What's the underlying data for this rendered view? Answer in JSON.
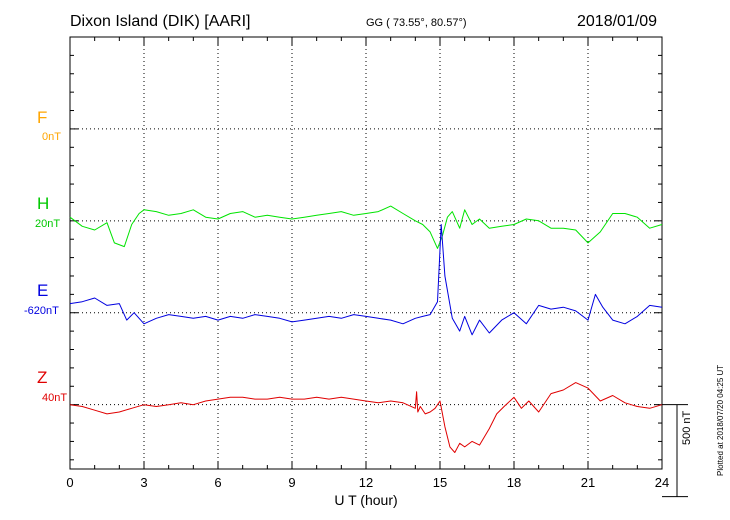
{
  "header": {
    "station": "Dixon Island (DIK)  [AARI]",
    "coords": "GG ( 73.55°,  80.57°)",
    "date": "2018/01/09"
  },
  "footer": {
    "plotted": "Plotted at 2018/07/20 04:25 UT"
  },
  "colors": {
    "F": "#ffa500",
    "H": "#00e400",
    "E": "#0000e0",
    "Z": "#e00000",
    "grid": "#000000"
  },
  "chart_data": {
    "type": "line",
    "title": "",
    "xlabel": "U T (hour)",
    "ylabel": "",
    "xlim": [
      0,
      24
    ],
    "ylim": [
      -1850,
      500
    ],
    "x_ticks": [
      0,
      3,
      6,
      9,
      12,
      15,
      18,
      21,
      24
    ],
    "x_tick_labels": [
      "0",
      "3",
      "6",
      "9",
      "12",
      "15",
      "18",
      "21",
      "24"
    ],
    "grid": true,
    "scale_bar": {
      "label": "500 nT",
      "value": 500
    },
    "series": [
      {
        "name": "F",
        "offset_label": "0nT",
        "baseline": 0,
        "x": [],
        "y": []
      },
      {
        "name": "H",
        "offset_label": "20nT",
        "baseline": -500,
        "x": [
          0,
          0.5,
          1,
          1.5,
          1.8,
          2.2,
          2.5,
          2.8,
          3,
          3.5,
          4,
          4.5,
          5,
          5.5,
          6,
          6.5,
          7,
          7.5,
          8,
          8.5,
          9,
          9.5,
          10,
          10.5,
          11,
          11.5,
          12,
          12.5,
          13,
          13.5,
          14,
          14.3,
          14.6,
          14.9,
          15.1,
          15.3,
          15.5,
          15.8,
          16,
          16.3,
          16.6,
          17,
          17.5,
          18,
          18.5,
          19,
          19.5,
          20,
          20.5,
          21,
          21.5,
          22,
          22.5,
          23,
          23.5,
          24
        ],
        "y": [
          20,
          -30,
          -50,
          -10,
          -120,
          -140,
          -20,
          40,
          60,
          50,
          30,
          40,
          60,
          20,
          10,
          40,
          50,
          20,
          30,
          20,
          10,
          20,
          30,
          40,
          50,
          30,
          40,
          50,
          80,
          40,
          0,
          -20,
          -60,
          -150,
          -80,
          20,
          50,
          -40,
          60,
          -20,
          10,
          -40,
          -30,
          -20,
          10,
          0,
          -40,
          -40,
          -50,
          -120,
          -60,
          40,
          40,
          20,
          -40,
          -20
        ]
      },
      {
        "name": "E",
        "offset_label": "-620nT",
        "baseline": -1000,
        "x": [
          0,
          0.5,
          1,
          1.5,
          2,
          2.3,
          2.6,
          3,
          3.5,
          4,
          4.5,
          5,
          5.5,
          6,
          6.5,
          7,
          7.5,
          8,
          8.5,
          9,
          9.5,
          10,
          10.5,
          11,
          11.5,
          12,
          12.5,
          13,
          13.5,
          14,
          14.3,
          14.6,
          14.9,
          15.05,
          15.2,
          15.5,
          15.8,
          16,
          16.3,
          16.6,
          17,
          17.5,
          18,
          18.5,
          19,
          19.5,
          20,
          20.5,
          21,
          21.3,
          21.6,
          22,
          22.5,
          23,
          23.5,
          24
        ],
        "y": [
          50,
          60,
          80,
          40,
          50,
          -40,
          0,
          -60,
          -30,
          -10,
          -20,
          -30,
          -20,
          -40,
          -20,
          -30,
          -10,
          -20,
          -30,
          -50,
          -40,
          -30,
          -20,
          -30,
          -10,
          -20,
          -30,
          -40,
          -60,
          -30,
          -20,
          -10,
          60,
          480,
          200,
          -30,
          -100,
          -20,
          -120,
          -40,
          -110,
          -40,
          0,
          -60,
          40,
          20,
          30,
          10,
          -40,
          100,
          30,
          -40,
          -60,
          -20,
          40,
          30
        ]
      },
      {
        "name": "Z",
        "offset_label": "40nT",
        "baseline": -1500,
        "x": [
          0,
          0.5,
          1,
          1.5,
          2,
          2.5,
          3,
          3.5,
          4,
          4.5,
          5,
          5.5,
          6,
          6.5,
          7,
          7.5,
          8,
          8.5,
          9,
          9.5,
          10,
          10.5,
          11,
          11.5,
          12,
          12.5,
          13,
          13.5,
          14,
          14.05,
          14.1,
          14.2,
          14.4,
          14.6,
          14.8,
          15,
          15.2,
          15.4,
          15.6,
          15.8,
          16,
          16.3,
          16.6,
          17,
          17.3,
          17.6,
          18,
          18.3,
          18.6,
          19,
          19.5,
          20,
          20.5,
          21,
          21.5,
          22,
          22.5,
          23,
          23.5,
          24
        ],
        "y": [
          0,
          -10,
          -30,
          -50,
          -40,
          -20,
          0,
          -10,
          0,
          10,
          0,
          20,
          30,
          40,
          40,
          30,
          30,
          40,
          30,
          30,
          40,
          30,
          40,
          30,
          20,
          10,
          20,
          10,
          -20,
          70,
          -40,
          -10,
          -50,
          -40,
          -20,
          20,
          -120,
          -230,
          -260,
          -210,
          -230,
          -200,
          -220,
          -130,
          -50,
          -10,
          40,
          -20,
          20,
          -40,
          60,
          80,
          120,
          90,
          20,
          50,
          10,
          -10,
          -20,
          0
        ]
      }
    ]
  }
}
